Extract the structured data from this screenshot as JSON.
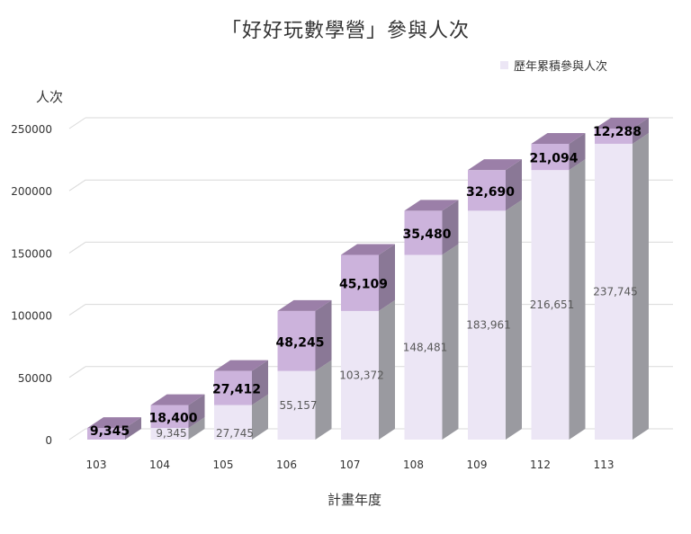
{
  "chart_data": {
    "type": "bar",
    "stacked": true,
    "three_d": true,
    "title": "「好好玩數學營」參與人次",
    "xlabel": "計畫年度",
    "ylabel": "人次",
    "categories": [
      "103",
      "104",
      "105",
      "106",
      "107",
      "108",
      "109",
      "112",
      "113"
    ],
    "series": [
      {
        "name": "歷年累積參與人次",
        "values": [
          0,
          9345,
          27745,
          55157,
          103372,
          148481,
          183961,
          216651,
          237745
        ],
        "labels": [
          "",
          "9,345",
          "27,745",
          "55,157",
          "103,372",
          "148,481",
          "183,961",
          "216,651",
          "237,745"
        ],
        "color": "#ece6f5"
      },
      {
        "values": [
          9345,
          18400,
          27412,
          48245,
          45109,
          35480,
          32690,
          21094,
          12288
        ],
        "labels": [
          "9,345",
          "18,400",
          "27,412",
          "48,245",
          "45,109",
          "35,480",
          "32,690",
          "21,094",
          "12,288"
        ],
        "color": "#ccb3dc"
      }
    ],
    "y_ticks": [
      "0",
      "50000",
      "100000",
      "150000",
      "200000",
      "250000"
    ],
    "ylim": [
      0,
      250000
    ],
    "grid": true,
    "legend": "top-right"
  },
  "colors": {
    "cumulative_front": "#ece6f5",
    "cumulative_side": "#9a9aa0",
    "annual_front": "#ccb3dc",
    "annual_side": "#8a7896",
    "top_face": "#9b7fa8",
    "grid": "#d9d9d9",
    "text": "#333333",
    "inner_label": "#595959"
  }
}
